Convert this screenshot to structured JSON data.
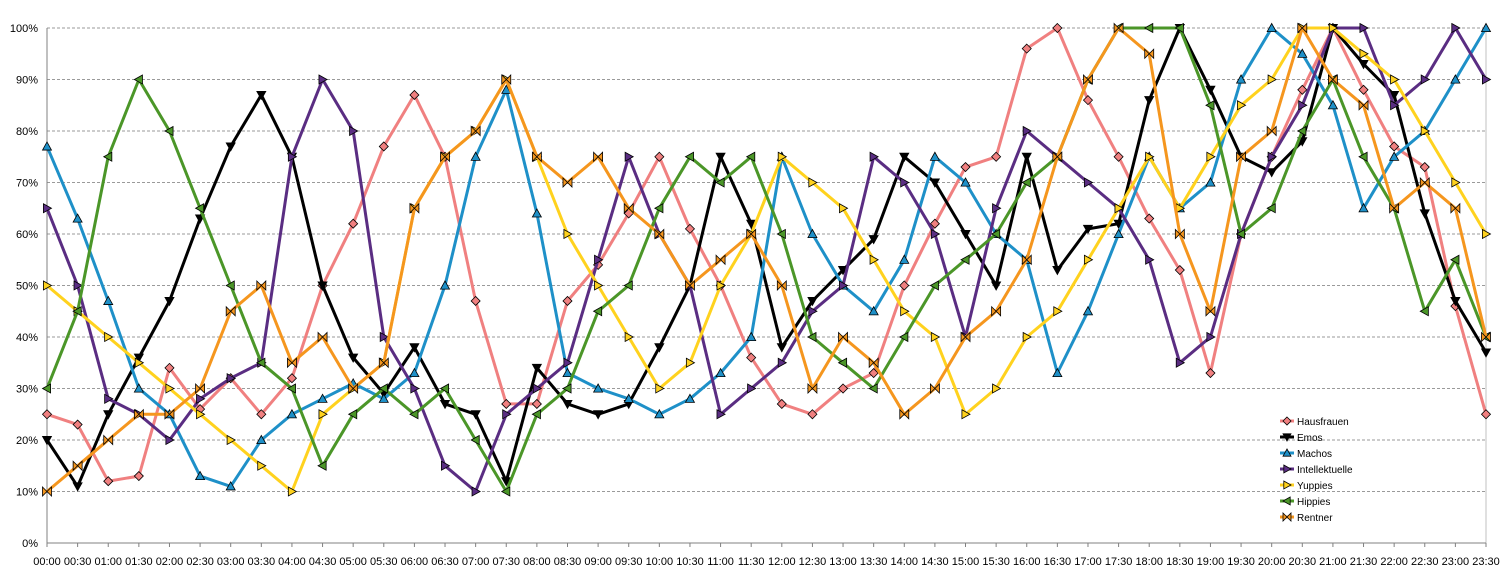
{
  "chart_data": {
    "type": "line",
    "title": "",
    "xlabel": "",
    "ylabel": "",
    "ylim": [
      0,
      100
    ],
    "y_ticks": [
      0,
      10,
      20,
      30,
      40,
      50,
      60,
      70,
      80,
      90,
      100
    ],
    "y_tick_suffix": "%",
    "grid": true,
    "legend_position": "bottom-right",
    "x": [
      "00:00",
      "00:30",
      "01:00",
      "01:30",
      "02:00",
      "02:30",
      "03:00",
      "03:30",
      "04:00",
      "04:30",
      "05:00",
      "05:30",
      "06:00",
      "06:30",
      "07:00",
      "07:30",
      "08:00",
      "08:30",
      "09:00",
      "09:30",
      "10:00",
      "10:30",
      "11:00",
      "11:30",
      "12:00",
      "12:30",
      "13:00",
      "13:30",
      "14:00",
      "14:30",
      "15:00",
      "15:30",
      "16:00",
      "16:30",
      "17:00",
      "17:30",
      "18:00",
      "18:30",
      "19:00",
      "19:30",
      "20:00",
      "20:30",
      "21:00",
      "21:30",
      "22:00",
      "22:30",
      "23:00",
      "23:30"
    ],
    "series": [
      {
        "name": "Hausfrauen",
        "color": "#f08080",
        "marker": "diamond",
        "values": [
          25,
          23,
          12,
          13,
          34,
          26,
          32,
          25,
          32,
          50,
          62,
          77,
          87,
          75,
          47,
          27,
          27,
          47,
          54,
          64,
          75,
          61,
          50,
          36,
          27,
          25,
          30,
          33,
          50,
          62,
          73,
          75,
          96,
          100,
          86,
          75,
          63,
          53,
          33,
          60,
          75,
          88,
          100,
          88,
          77,
          73,
          46,
          25
        ]
      },
      {
        "name": "Emos",
        "color": "#000000",
        "marker": "triangle-down",
        "values": [
          20,
          11,
          25,
          36,
          47,
          63,
          77,
          87,
          75,
          50,
          36,
          29,
          38,
          27,
          25,
          12,
          34,
          27,
          25,
          27,
          38,
          50,
          75,
          62,
          38,
          47,
          53,
          59,
          75,
          70,
          60,
          50,
          75,
          53,
          61,
          62,
          86,
          100,
          88,
          75,
          72,
          78,
          100,
          93,
          87,
          64,
          47,
          37
        ]
      },
      {
        "name": "Machos",
        "color": "#1e90c8",
        "marker": "triangle-up",
        "values": [
          77,
          63,
          47,
          30,
          25,
          13,
          11,
          20,
          25,
          28,
          31,
          28,
          33,
          50,
          75,
          88,
          64,
          33,
          30,
          28,
          25,
          28,
          33,
          40,
          75,
          60,
          50,
          45,
          55,
          75,
          70,
          60,
          55,
          33,
          45,
          60,
          75,
          65,
          70,
          90,
          100,
          95,
          85,
          65,
          75,
          80,
          90,
          100
        ]
      },
      {
        "name": "Intellektuelle",
        "color": "#5a2d82",
        "marker": "triangle-right",
        "values": [
          65,
          50,
          28,
          25,
          20,
          28,
          32,
          35,
          75,
          90,
          80,
          40,
          30,
          15,
          10,
          25,
          30,
          35,
          55,
          75,
          60,
          50,
          25,
          30,
          35,
          45,
          50,
          75,
          70,
          60,
          40,
          65,
          80,
          75,
          70,
          65,
          55,
          35,
          40,
          60,
          75,
          85,
          100,
          100,
          85,
          90,
          100,
          90
        ]
      },
      {
        "name": "Yuppies",
        "color": "#ffd21e",
        "marker": "triangle-right",
        "values": [
          50,
          45,
          40,
          35,
          30,
          25,
          20,
          15,
          10,
          25,
          30,
          35,
          65,
          75,
          80,
          90,
          75,
          60,
          50,
          40,
          30,
          35,
          50,
          60,
          75,
          70,
          65,
          55,
          45,
          40,
          25,
          30,
          40,
          45,
          55,
          65,
          75,
          65,
          75,
          85,
          90,
          100,
          100,
          95,
          90,
          80,
          70,
          60
        ]
      },
      {
        "name": "Hippies",
        "color": "#4b9628",
        "marker": "triangle-left",
        "values": [
          30,
          45,
          75,
          90,
          80,
          65,
          50,
          35,
          30,
          15,
          25,
          30,
          25,
          30,
          20,
          10,
          25,
          30,
          45,
          50,
          65,
          75,
          70,
          75,
          60,
          40,
          35,
          30,
          40,
          50,
          55,
          60,
          70,
          75,
          90,
          100,
          100,
          100,
          85,
          60,
          65,
          80,
          90,
          75,
          65,
          45,
          55,
          40
        ]
      },
      {
        "name": "Rentner",
        "color": "#f5961e",
        "marker": "bowtie",
        "values": [
          10,
          15,
          20,
          25,
          25,
          30,
          45,
          50,
          35,
          40,
          30,
          35,
          65,
          75,
          80,
          90,
          75,
          70,
          75,
          65,
          60,
          50,
          55,
          60,
          50,
          30,
          40,
          35,
          25,
          30,
          40,
          45,
          55,
          75,
          90,
          100,
          95,
          60,
          45,
          75,
          80,
          100,
          90,
          85,
          65,
          70,
          65,
          40
        ]
      }
    ]
  }
}
